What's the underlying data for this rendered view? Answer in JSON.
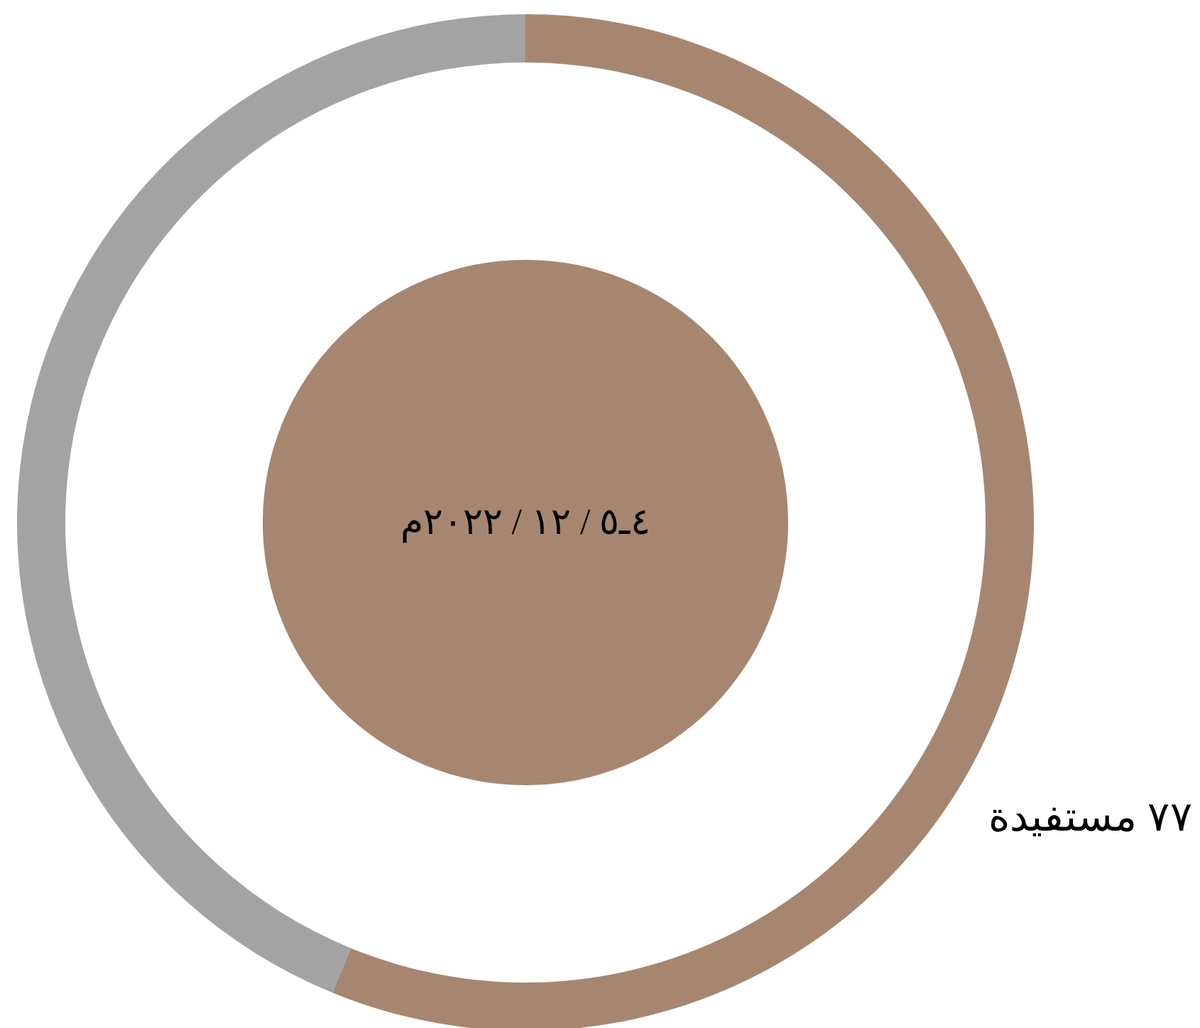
{
  "chart_data": {
    "type": "donut",
    "title": "٤ـ٥ / ١٢ / ٢٠٢٢م",
    "categories": [
      "٧٧ مستفيدة",
      null
    ],
    "values": [
      56.2,
      43.8
    ],
    "colors": [
      "#a78671",
      "#a3a3a3"
    ]
  }
}
